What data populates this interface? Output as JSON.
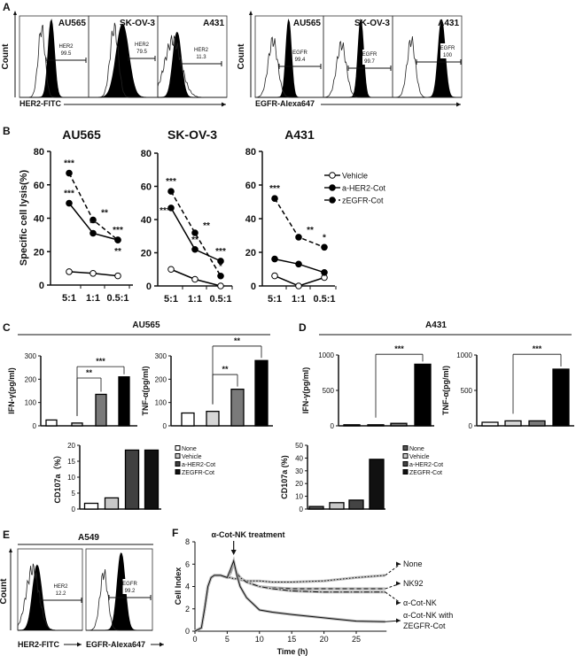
{
  "panel_labels": [
    "A",
    "B",
    "C",
    "D",
    "E",
    "F"
  ],
  "chart_data": [
    {
      "type": "histogram",
      "panel": "A",
      "ylabel": "Count",
      "xlabel": "HER2-FITC",
      "subplots": [
        {
          "title": "AU565",
          "gate_label": "HER2",
          "gate_value": "99.5"
        },
        {
          "title": "SK-OV-3",
          "gate_label": "HER2",
          "gate_value": "79.5"
        },
        {
          "title": "A431",
          "gate_label": "HER2",
          "gate_value": "11.3"
        }
      ]
    },
    {
      "type": "histogram",
      "panel": "A",
      "ylabel": "Count",
      "xlabel": "EGFR-Alexa647",
      "subplots": [
        {
          "title": "AU565",
          "gate_label": "EGFR",
          "gate_value": "99.4"
        },
        {
          "title": "SK-OV-3",
          "gate_label": "EGFR",
          "gate_value": "99.7"
        },
        {
          "title": "A431",
          "gate_label": "EGFR",
          "gate_value": "100"
        }
      ]
    },
    {
      "type": "line",
      "panel": "B",
      "title": "AU565",
      "ylabel": "Specific cell lysis(%)",
      "ylim": [
        0,
        80
      ],
      "yticks": [
        "0",
        "20",
        "40",
        "60",
        "80"
      ],
      "categories": [
        "5:1",
        "1:1",
        "0.5:1"
      ],
      "series": [
        {
          "name": "Vehicle",
          "values": [
            8,
            7,
            5.5
          ]
        },
        {
          "name": "a-HER2-Cot",
          "values": [
            49,
            31,
            27
          ]
        },
        {
          "name": "zEGFR-Cot",
          "values": [
            67,
            39,
            27
          ]
        }
      ],
      "annotations": [
        {
          "series": 2,
          "point": 0,
          "text": "***",
          "pos": "above"
        },
        {
          "series": 1,
          "point": 0,
          "text": "***",
          "pos": "above"
        },
        {
          "series": 2,
          "point": 1,
          "text": "**",
          "pos": "right"
        },
        {
          "series": 1,
          "point": 1,
          "text": "**",
          "pos": "above"
        },
        {
          "series": 2,
          "point": 2,
          "text": "***",
          "pos": "above"
        },
        {
          "series": 1,
          "point": 2,
          "text": "**",
          "pos": "below"
        }
      ]
    },
    {
      "type": "line",
      "panel": "B",
      "title": "SK-OV-3",
      "ylim": [
        0,
        80
      ],
      "yticks": [
        "0",
        "20",
        "40",
        "60",
        "80"
      ],
      "categories": [
        "5:1",
        "1:1",
        "0.5:1"
      ],
      "series": [
        {
          "name": "Vehicle",
          "values": [
            10,
            4,
            0
          ]
        },
        {
          "name": "a-HER2-Cot",
          "values": [
            47,
            22,
            15
          ]
        },
        {
          "name": "zEGFR-Cot",
          "values": [
            57,
            32,
            6
          ]
        }
      ],
      "annotations": [
        {
          "series": 2,
          "point": 0,
          "text": "***",
          "pos": "above"
        },
        {
          "series": 1,
          "point": 0,
          "text": "***",
          "pos": "left"
        },
        {
          "series": 2,
          "point": 1,
          "text": "**",
          "pos": "right"
        },
        {
          "series": 1,
          "point": 1,
          "text": "**",
          "pos": "above"
        },
        {
          "series": 1,
          "point": 2,
          "text": "***",
          "pos": "above"
        },
        {
          "series": 2,
          "point": 2,
          "text": "*",
          "pos": "above"
        }
      ]
    },
    {
      "type": "line",
      "panel": "B",
      "title": "A431",
      "ylim": [
        0,
        80
      ],
      "yticks": [
        "0",
        "20",
        "40",
        "60",
        "80"
      ],
      "categories": [
        "5:1",
        "1:1",
        "0.5:1"
      ],
      "series": [
        {
          "name": "Vehicle",
          "values": [
            6,
            0,
            5
          ]
        },
        {
          "name": "a-HER2-Cot",
          "values": [
            16,
            13,
            8
          ]
        },
        {
          "name": "zEGFR-Cot",
          "values": [
            52,
            29,
            23
          ]
        }
      ],
      "annotations": [
        {
          "series": 2,
          "point": 0,
          "text": "***",
          "pos": "above"
        },
        {
          "series": 2,
          "point": 1,
          "text": "**",
          "pos": "right"
        },
        {
          "series": 2,
          "point": 2,
          "text": "*",
          "pos": "above"
        }
      ],
      "legend": "right"
    },
    {
      "type": "bar",
      "panel": "C",
      "group_title": "AU565",
      "ylabel": "IFN-γ(pg/ml)",
      "ylim": [
        0,
        300
      ],
      "yticks": [
        "0",
        "100",
        "200",
        "300"
      ],
      "categories": [
        "None",
        "Vehicle",
        "a-HER2-Cot",
        "ZEGFR-Cot"
      ],
      "values": [
        25,
        12,
        135,
        210
      ],
      "colors": [
        "#ffffff",
        "#d6d6d6",
        "#7a7a7a",
        "#000000"
      ],
      "brackets": [
        {
          "from": 1,
          "to": 2,
          "text": "**",
          "level": 205
        },
        {
          "from": 1,
          "to": 3,
          "text": "***",
          "level": 254
        }
      ]
    },
    {
      "type": "bar",
      "panel": "C",
      "ylabel": "TNF-α(pg/ml)",
      "ylim": [
        0,
        300
      ],
      "yticks": [
        "0",
        "100",
        "200",
        "300"
      ],
      "categories": [
        "None",
        "Vehicle",
        "a-HER2-Cot",
        "ZEGFR-Cot"
      ],
      "values": [
        55,
        62,
        157,
        280
      ],
      "colors": [
        "#ffffff",
        "#d6d6d6",
        "#7a7a7a",
        "#000000"
      ],
      "brackets": [
        {
          "from": 1,
          "to": 2,
          "text": "**",
          "level": 220
        },
        {
          "from": 1,
          "to": 3,
          "text": "**",
          "level": 342
        }
      ]
    },
    {
      "type": "bar",
      "panel": "C",
      "ylabel": "CD107a（%）",
      "ylim": [
        0,
        20
      ],
      "yticks": [
        "0",
        "5",
        "10",
        "15",
        "20"
      ],
      "categories": [
        "None",
        "Vehicle",
        "a-HER2-Cot",
        "ZEGFR-Cot"
      ],
      "values": [
        1.8,
        3.5,
        18.5,
        18.5
      ],
      "colors": [
        "#ffffff",
        "#c8c8c8",
        "#404040",
        "#111111"
      ],
      "legend": "right",
      "legend_entries": [
        "None",
        "Vehicle",
        "a-HER2-Cot",
        "ZEGFR-Cot"
      ]
    },
    {
      "type": "bar",
      "panel": "D",
      "group_title": "A431",
      "ylabel": "IFN-γ(pg/ml)",
      "ylim": [
        0,
        1000
      ],
      "yticks": [
        "0",
        "500",
        "1000"
      ],
      "categories": [
        "None",
        "Vehicle",
        "a-HER2-Cot",
        "ZEGFR-Cot"
      ],
      "values": [
        15,
        15,
        35,
        870
      ],
      "colors": [
        "#ffffff",
        "#d6d6d6",
        "#7a7a7a",
        "#000000"
      ],
      "brackets": [
        {
          "from": 1,
          "to": 3,
          "text": "***",
          "level": 1010
        }
      ]
    },
    {
      "type": "bar",
      "panel": "D",
      "ylabel": "TNF-α(pg/ml)",
      "ylim": [
        0,
        1000
      ],
      "yticks": [
        "0",
        "500",
        "1000"
      ],
      "categories": [
        "None",
        "Vehicle",
        "a-HER2-Cot",
        "ZEGFR-Cot"
      ],
      "values": [
        50,
        70,
        70,
        800
      ],
      "colors": [
        "#ffffff",
        "#d6d6d6",
        "#7a7a7a",
        "#000000"
      ],
      "brackets": [
        {
          "from": 1,
          "to": 3,
          "text": "***",
          "level": 1010
        }
      ]
    },
    {
      "type": "bar",
      "panel": "D",
      "ylabel": "CD107a  (%)",
      "ylim": [
        0,
        50
      ],
      "yticks": [
        "0",
        "10",
        "20",
        "30",
        "40",
        "50"
      ],
      "categories": [
        "None",
        "Vehicle",
        "a-HER2-Cot",
        "ZEGFR-Cot"
      ],
      "values": [
        2,
        5,
        7,
        39
      ],
      "colors": [
        "#555555",
        "#c8c8c8",
        "#444444",
        "#111111"
      ],
      "legend": "right",
      "legend_entries": [
        "None",
        "Vehicle",
        "a-HER2-Cot",
        "ZEGFR-Cot"
      ]
    },
    {
      "type": "histogram",
      "panel": "E",
      "group_title": "A549",
      "ylabel": "Count",
      "subplots": [
        {
          "xlabel": "HER2-FITC",
          "gate_label": "HER2",
          "gate_value": "12.2"
        },
        {
          "xlabel": "EGFR-Alexa647",
          "gate_label": "EGFR",
          "gate_value": "99.2"
        }
      ]
    },
    {
      "type": "line",
      "panel": "F",
      "xlabel": "Time (h)",
      "ylabel": "Cell Index",
      "xlim": [
        0,
        30
      ],
      "ylim": [
        0,
        8
      ],
      "xticks": [
        "0",
        "5",
        "10",
        "15",
        "20",
        "25"
      ],
      "yticks": [
        "0",
        "2",
        "4",
        "6",
        "8"
      ],
      "annotation": "α-Cot-NK  treatment",
      "annotation_x": 6,
      "x": [
        0,
        1,
        1.5,
        2,
        2.5,
        3,
        4,
        5,
        5.5,
        6,
        6.5,
        7,
        8,
        10,
        12,
        15,
        20,
        25,
        29.5
      ],
      "series": [
        {
          "name": "None",
          "values": [
            0,
            0.3,
            2,
            4,
            4.8,
            5,
            5,
            4.8,
            4.8,
            4.7,
            4.7,
            4.6,
            4.5,
            4.5,
            4.4,
            4.4,
            4.5,
            4.8,
            5.0
          ]
        },
        {
          "name": "NK92",
          "values": [
            0,
            0.3,
            2,
            4,
            4.8,
            5,
            5,
            4.8,
            5.2,
            6.1,
            5.2,
            4.8,
            4.4,
            4.0,
            3.9,
            3.8,
            3.8,
            3.8,
            3.8
          ]
        },
        {
          "name": "α-Cot-NK",
          "values": [
            0,
            0.3,
            2,
            4,
            4.8,
            5,
            5,
            4.8,
            5.2,
            6.1,
            5.2,
            4.8,
            4.4,
            4.0,
            3.8,
            3.6,
            3.5,
            3.5,
            3.5
          ]
        },
        {
          "name": "α-Cot-NK with",
          "name_line2": "ZEGFR-Cot",
          "values": [
            0,
            0.3,
            2,
            4,
            4.8,
            5,
            5,
            4.8,
            5.5,
            6.3,
            5.0,
            4.0,
            3.0,
            1.9,
            1.7,
            1.5,
            1.2,
            0.9,
            0.85
          ]
        }
      ]
    }
  ]
}
